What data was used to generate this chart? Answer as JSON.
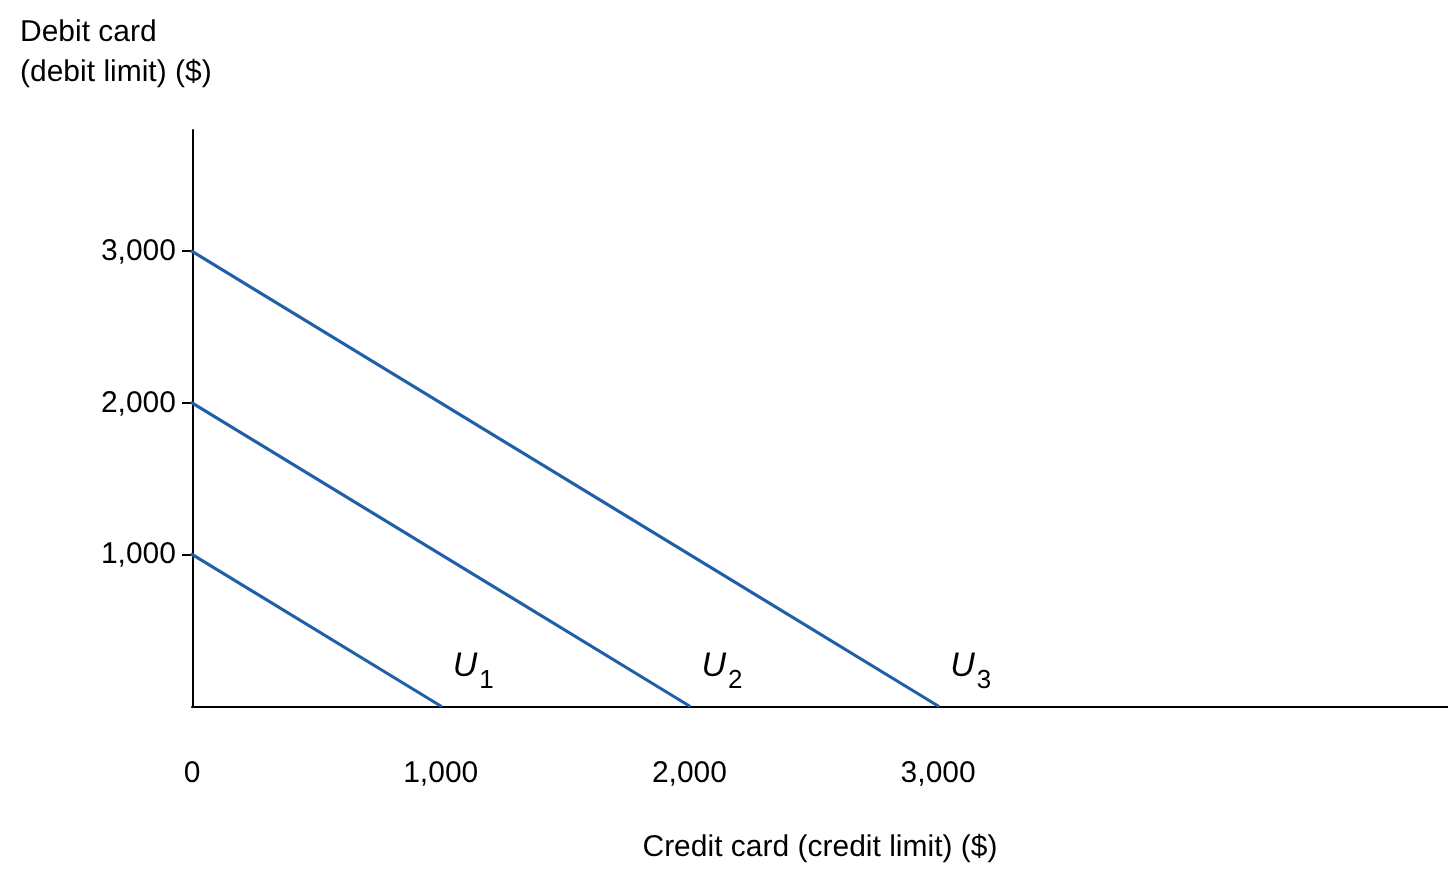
{
  "chart_data": {
    "type": "line",
    "ylabel": "Debit card\n(debit limit) ($)",
    "xlabel": "Credit card (credit limit) ($)",
    "series": [
      {
        "name": "U$_{1}$",
        "x": [
          0,
          1000
        ],
        "values": [
          1000,
          0
        ],
        "color": "#1f5fa8"
      },
      {
        "name": "U$_{2}$",
        "x": [
          0,
          2000
        ],
        "values": [
          2000,
          0
        ],
        "color": "#1f5fa8"
      },
      {
        "name": "U$_{3}$",
        "x": [
          0,
          3000
        ],
        "values": [
          3000,
          0
        ],
        "color": "#1f5fa8"
      }
    ],
    "xlim": [
      0,
      5050
    ],
    "xticks": [
      0,
      {
        "value": 1000,
        "label": "1,000"
      },
      {
        "value": 2000,
        "label": "2,000"
      },
      {
        "value": 3000,
        "label": "3,000"
      }
    ],
    "ylim": [
      0,
      3800
    ],
    "yticks": [
      {
        "value": 1000,
        "label": "1,000"
      },
      {
        "value": 2000,
        "label": "2,000"
      },
      {
        "value": 3000,
        "label": "3,000"
      }
    ],
    "grid": false,
    "marker": "none",
    "line_style": "solid"
  }
}
